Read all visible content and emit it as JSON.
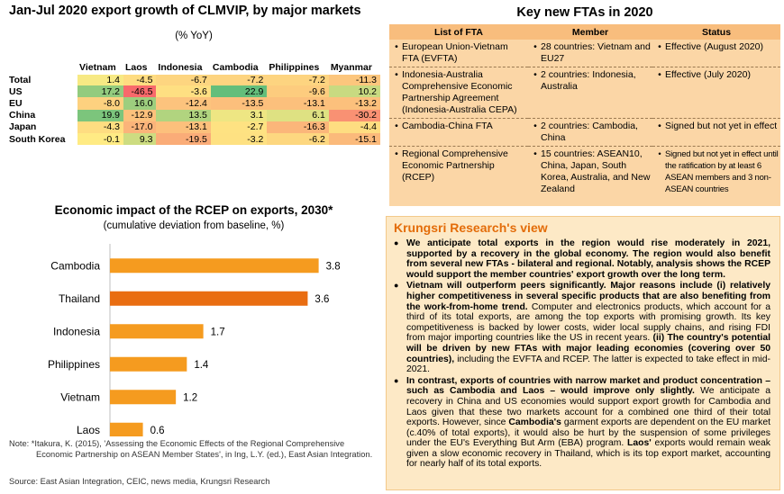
{
  "heatmap": {
    "title": "Jan-Jul 2020 export growth of CLMVIP, by major markets",
    "subtitle": "(% YoY)",
    "columns": [
      "Vietnam",
      "Laos",
      "Indonesia",
      "Cambodia",
      "Philippines",
      "Myanmar"
    ],
    "rows": [
      {
        "label": "Total",
        "values": [
          1.4,
          -4.5,
          -6.7,
          -7.2,
          -7.2,
          -11.3
        ]
      },
      {
        "label": "US",
        "values": [
          17.2,
          -46.5,
          -3.6,
          22.9,
          -9.6,
          10.2
        ]
      },
      {
        "label": "EU",
        "values": [
          -8.0,
          16.0,
          -12.4,
          -13.5,
          -13.1,
          -13.2
        ]
      },
      {
        "label": "China",
        "values": [
          19.9,
          -12.9,
          13.5,
          3.1,
          6.1,
          -30.2
        ]
      },
      {
        "label": "Japan",
        "values": [
          -4.3,
          -17.0,
          -13.1,
          -2.7,
          -16.3,
          -4.4
        ]
      },
      {
        "label": "South Korea",
        "values": [
          -0.1,
          9.3,
          -19.5,
          -3.2,
          -6.2,
          -15.1
        ]
      }
    ],
    "display": [
      [
        "1.4",
        "-4.5",
        "-6.7",
        "-7.2",
        "-7.2",
        "-11.3"
      ],
      [
        "17.2",
        "-46.5",
        "-3.6",
        "22.9",
        "-9.6",
        "10.2"
      ],
      [
        "-8.0",
        "16.0",
        "-12.4",
        "-13.5",
        "-13.1",
        "-13.2"
      ],
      [
        "19.9",
        "-12.9",
        "13.5",
        "3.1",
        "6.1",
        "-30.2"
      ],
      [
        "-4.3",
        "-17.0",
        "-13.1",
        "-2.7",
        "-16.3",
        "-4.4"
      ],
      [
        "-0.1",
        "9.3",
        "-19.5",
        "-3.2",
        "-6.2",
        "-15.1"
      ]
    ]
  },
  "fta": {
    "title": "Key new FTAs in 2020",
    "headers": [
      "List of FTA",
      "Member",
      "Status"
    ],
    "rows": [
      {
        "name": "European Union-Vietnam FTA (EVFTA)",
        "member": "28 countries: Vietnam and EU27",
        "status": "Effective (August 2020)"
      },
      {
        "name": "Indonesia-Australia Comprehensive Economic Partnership Agreement (Indonesia-Australia CEPA)",
        "member": "2 countries: Indonesia, Australia",
        "status": "Effective (July 2020)"
      },
      {
        "name": "Cambodia-China FTA",
        "member": "2 countries: Cambodia, China",
        "status": "Signed but not yet in effect"
      },
      {
        "name": "Regional Comprehensive Economic Partnership (RCEP)",
        "member": "15 countries: ASEAN10, China, Japan, South Korea, Australia, and New Zealand",
        "status": "Signed but not yet in effect until the ratification by at least 6 ASEAN members and 3 non-ASEAN countries"
      }
    ]
  },
  "chart_data": {
    "type": "bar",
    "orientation": "horizontal",
    "title": "Economic impact of the RCEP on exports, 2030*",
    "subtitle": "(cumulative deviation from baseline, %)",
    "categories": [
      "Cambodia",
      "Thailand",
      "Indonesia",
      "Philippines",
      "Vietnam",
      "Laos"
    ],
    "values": [
      3.8,
      3.6,
      1.7,
      1.4,
      1.2,
      0.6
    ],
    "labels": [
      "3.8",
      "3.6",
      "1.7",
      "1.4",
      "1.2",
      "0.6"
    ],
    "xlim": [
      0,
      4.2
    ],
    "colors": [
      "#f59b1f",
      "#e96d11",
      "#f59b1f",
      "#f59b1f",
      "#f59b1f",
      "#f59b1f"
    ]
  },
  "notes": {
    "note1": "Note: *Itakura, K. (2015), 'Assessing the Economic Effects of the Regional Comprehensive",
    "note2": "Economic Partnership on ASEAN Member States', in Ing, L.Y. (ed.), East Asian Integration.",
    "source": "Source: East Asian Integration, CEIC, news media, Krungsri Research"
  },
  "view": {
    "title": "Krungsri Research's view",
    "p1": "We anticipate total exports in the region would rise moderately in 2021, supported by a recovery in the global economy. The region would also benefit from several new FTAs - bilateral and regional. Notably, analysis shows the RCEP would support the member countries' export growth over the long term.",
    "p2_bold": "Vietnam will outperform peers significantly. Major reasons include (i) relatively higher competitiveness in several specific products that are also benefiting from the work-from-home trend.",
    "p2_text": " Computer and electronics products, which account for a third of its total exports, are among the top exports with promising growth. Its key competitiveness is backed by lower costs, wider local supply chains, and rising FDI from major importing countries like the US in recent years.",
    "p2_bold2": " (ii) The country's potential will be driven by new FTAs with major leading economies (covering over 50 countries),",
    "p2_text2": " including the EVFTA and RCEP. The latter is expected to take effect in mid-2021.",
    "p3_bold": "In contrast, exports of countries with narrow market and product concentration – such as Cambodia and Laos – would improve only slightly.",
    "p3_text": " We anticipate a recovery in China and US economies would support export growth for Cambodia and Laos given that these two markets account for a combined one third of their total exports. However, since ",
    "p3_bold2": "Cambodia's",
    "p3_text2": " garment exports are dependent on the EU market (c.40% of total exports), it would also be hurt by the suspension of some privileges under the EU's Everything But Arm (EBA) program. ",
    "p3_bold3": "Laos'",
    "p3_text3": " exports would remain weak given a slow economic recovery in Thailand, which is its top export market, accounting for nearly half of its total exports."
  }
}
